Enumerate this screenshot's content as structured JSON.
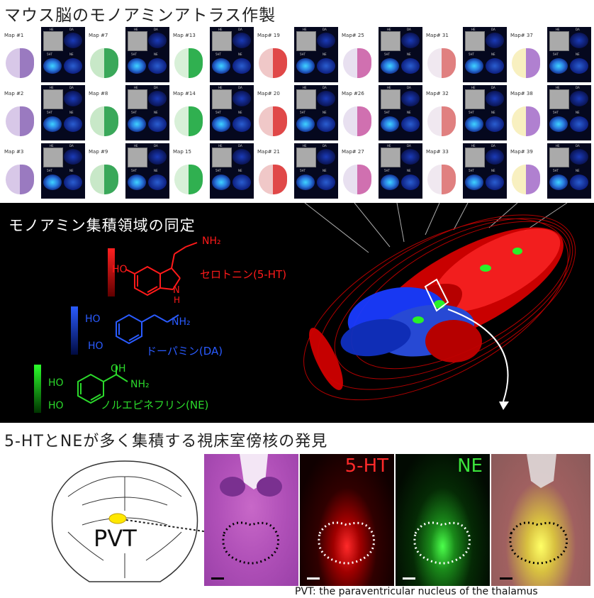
{
  "top_section": {
    "title": "マウス脳のモノアミンアトラス作製",
    "panel_headers": {
      "he": "HE",
      "da": "DA",
      "ht": "5HT",
      "ne": "NE"
    },
    "columns": [
      {
        "maps": [
          "Map #1",
          "Map #2",
          "Map #3"
        ]
      },
      {
        "maps": [
          "Map #7",
          "Map #8",
          "Map #9"
        ]
      },
      {
        "maps": [
          "Map #13",
          "Map #14",
          "Map 15"
        ]
      },
      {
        "maps": [
          "Map# 19",
          "Map# 20",
          "Map# 21"
        ]
      },
      {
        "maps": [
          "Map# 25",
          "Map #26",
          "Map# 27"
        ]
      },
      {
        "maps": [
          "Map# 31",
          "Map# 32",
          "Map# 33"
        ]
      },
      {
        "maps": [
          "Map# 37",
          "Map# 38",
          "Map# 39"
        ]
      }
    ]
  },
  "middle_section": {
    "title": "モノアミン集積領域の同定",
    "legend": [
      {
        "label": "セロトニン(5-HT)",
        "color": "#ff1a1a"
      },
      {
        "label": "ドーパミン(DA)",
        "color": "#2a5bff"
      },
      {
        "label": "ノルエピネフリン(NE)",
        "color": "#2bd92b"
      }
    ],
    "chem_labels": {
      "serotonin_nh2": "NH₂",
      "serotonin_ho": "HO",
      "serotonin_nh": "N",
      "serotonin_h": "H",
      "dopamine_ho1": "HO",
      "dopamine_ho2": "HO",
      "dopamine_nh2": "NH₂",
      "ne_oh": "OH",
      "ne_ho1": "HO",
      "ne_ho2": "HO",
      "ne_nh2": "NH₂"
    }
  },
  "bottom_section": {
    "title": "5-HTとNEが多く集積する視床室傍核の発見",
    "pvt_label": "PVT",
    "panels": [
      {
        "label": "",
        "color": "#ffffff"
      },
      {
        "label": "5-HT",
        "color": "#ff2a2a"
      },
      {
        "label": "NE",
        "color": "#3be33b"
      },
      {
        "label": "",
        "color": "#ffffff"
      }
    ],
    "caption": "PVT: the paraventricular nucleus of the thalamus"
  }
}
